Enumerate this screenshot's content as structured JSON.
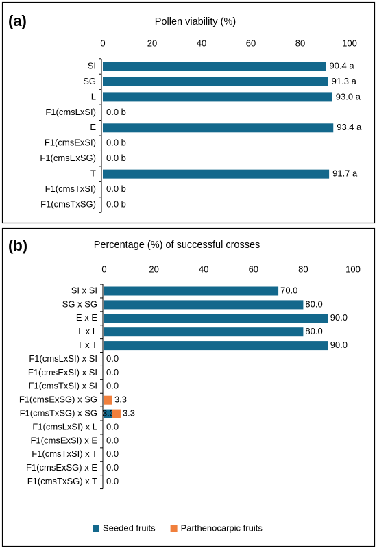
{
  "chart_data": [
    {
      "type": "bar",
      "panel_label": "(a)",
      "title": "Pollen viability (%)",
      "categories": [
        "SI",
        "SG",
        "L",
        "F1(cmsLxSI)",
        "E",
        "F1(cmsExSI)",
        "F1(cmsExSG)",
        "T",
        "F1(cmsTxSI)",
        "F1(cmsTxSG)"
      ],
      "values": [
        90.4,
        91.3,
        93.0,
        0.0,
        93.4,
        0.0,
        0.0,
        91.7,
        0.0,
        0.0
      ],
      "value_labels": [
        "90.4 a",
        "91.3 a",
        "93.0 a",
        "0.0 b",
        "93.4 a",
        "0.0 b",
        "0.0 b",
        "91.7 a",
        "0.0 b",
        "0.0 b"
      ],
      "color": "#13688c",
      "xlim": [
        0,
        100
      ],
      "xticks": [
        0,
        20,
        40,
        60,
        80,
        100
      ],
      "grid": false
    },
    {
      "type": "stacked_bar",
      "panel_label": "(b)",
      "title": "Percentage (%) of successful crosses",
      "categories": [
        "SI x SI",
        "SG x SG",
        "E x E",
        "L x L",
        "T x T",
        "F1(cmsLxSI) x SI",
        "F1(cmsExSI) x SI",
        "F1(cmsTxSI) x SI",
        "F1(cmsExSG) x SG",
        "F1(cmsTxSG) x SG",
        "F1(cmsLxSI) x L",
        "F1(cmsExSI) x E",
        "F1(cmsTxSI) x T",
        "F1(cmsExSG) x E",
        "F1(cmsTxSG) x T"
      ],
      "series": [
        {
          "name": "Seeded fruits",
          "color": "#13688c",
          "values": [
            70.0,
            80.0,
            90.0,
            80.0,
            90.0,
            0.0,
            0.0,
            0.0,
            0.0,
            3.3,
            0.0,
            0.0,
            0.0,
            0.0,
            0.0
          ],
          "value_labels": [
            "70.0",
            "80.0",
            "90.0",
            "80.0",
            "90.0",
            "0.0",
            "0.0",
            "0.0",
            null,
            "3.3",
            "0.0",
            "0.0",
            "0.0",
            "0.0",
            "0.0"
          ]
        },
        {
          "name": "Parthenocarpic fruits",
          "color": "#f07f3c",
          "values": [
            0,
            0,
            0,
            0,
            0,
            0,
            0,
            0,
            3.3,
            3.3,
            0,
            0,
            0,
            0,
            0
          ],
          "value_labels": [
            null,
            null,
            null,
            null,
            null,
            null,
            null,
            null,
            "3.3",
            "3.3",
            null,
            null,
            null,
            null,
            null
          ]
        }
      ],
      "xlim": [
        0,
        100
      ],
      "xticks": [
        0,
        20,
        40,
        60,
        80,
        100
      ],
      "grid": false,
      "legend": "bottom"
    }
  ]
}
